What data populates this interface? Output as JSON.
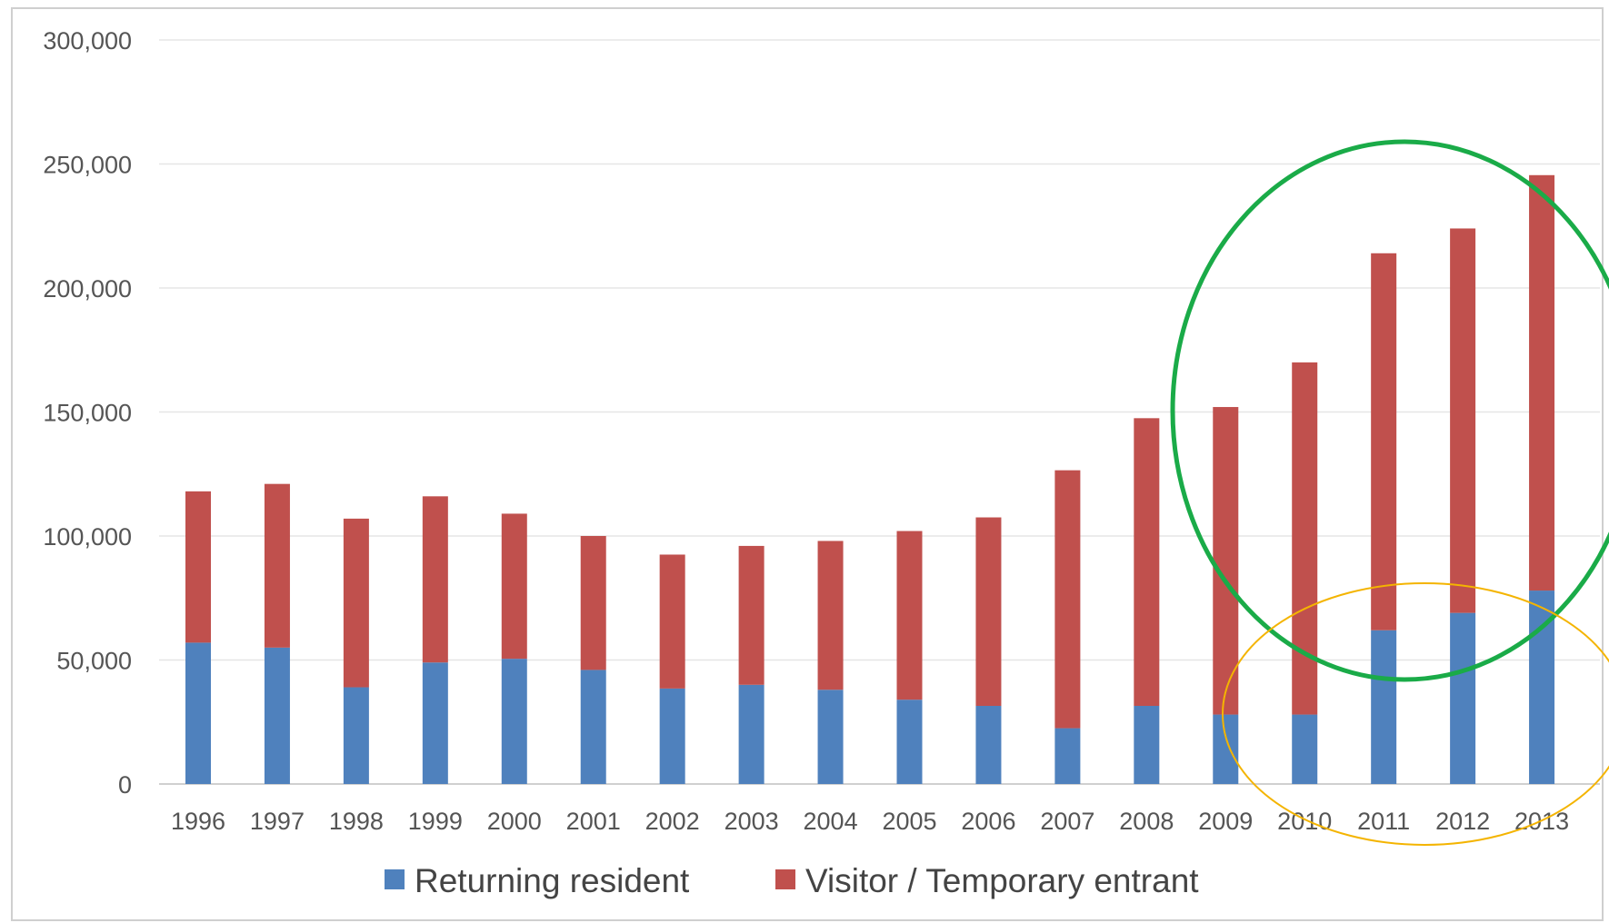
{
  "chart_data": {
    "type": "bar",
    "stacked": true,
    "title": "",
    "xlabel": "",
    "ylabel": "",
    "ylim": [
      0,
      300000
    ],
    "y_ticks": [
      0,
      50000,
      100000,
      150000,
      200000,
      250000,
      300000
    ],
    "y_tick_labels": [
      "0",
      "50,000",
      "100,000",
      "150,000",
      "200,000",
      "250,000",
      "300,000"
    ],
    "grid": true,
    "legend_position": "bottom",
    "categories": [
      "1996",
      "1997",
      "1998",
      "1999",
      "2000",
      "2001",
      "2002",
      "2003",
      "2004",
      "2005",
      "2006",
      "2007",
      "2008",
      "2009",
      "2010",
      "2011",
      "2012",
      "2013"
    ],
    "series": [
      {
        "name": "Returning resident",
        "color": "#4f81bd",
        "values": [
          57000,
          55000,
          39000,
          49000,
          50500,
          46000,
          38500,
          40000,
          38000,
          34000,
          31500,
          22500,
          31500,
          28000,
          28000,
          62000,
          69000,
          78000
        ]
      },
      {
        "name": "Visitor / Temporary entrant",
        "color": "#c0504d",
        "values": [
          61000,
          66000,
          68000,
          67000,
          58500,
          54000,
          54000,
          56000,
          60000,
          68000,
          76000,
          104000,
          116000,
          124000,
          142000,
          152000,
          155000,
          167500
        ]
      }
    ],
    "annotations": [
      {
        "shape": "ellipse",
        "color": "#1aab48",
        "note": ""
      },
      {
        "shape": "ellipse",
        "color": "#f4b400",
        "note": ""
      }
    ]
  }
}
